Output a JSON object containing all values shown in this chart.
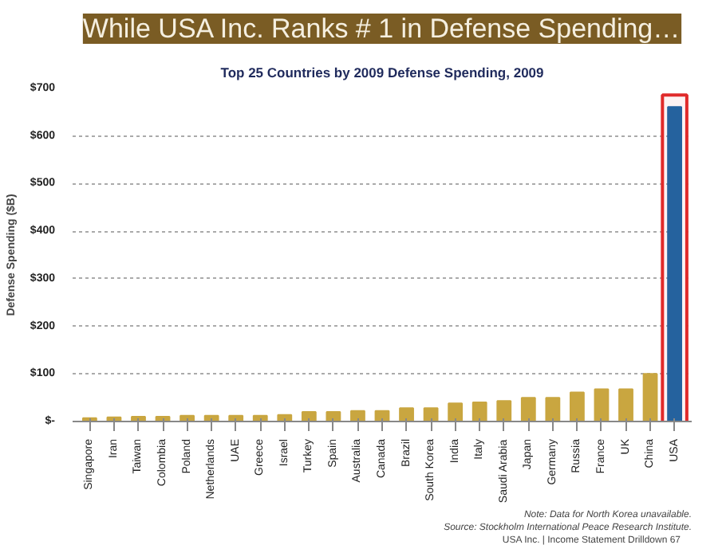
{
  "chart_data": {
    "type": "bar",
    "title": "While USA Inc. Ranks # 1 in Defense Spending…",
    "subtitle": "Top 25 Countries by 2009 Defense Spending, 2009",
    "ylabel": "Defense Spending ($B)",
    "categories": [
      "Singapore",
      "Iran",
      "Taiwan",
      "Colombia",
      "Poland",
      "Netherlands",
      "UAE",
      "Greece",
      "Israel",
      "Turkey",
      "Spain",
      "Australia",
      "Canada",
      "Brazil",
      "South Korea",
      "India",
      "Italy",
      "Saudi Arabia",
      "Japan",
      "Germany",
      "Russia",
      "France",
      "UK",
      "China",
      "USA"
    ],
    "values": [
      7,
      9,
      10,
      10,
      12,
      12,
      12,
      12,
      14,
      20,
      20,
      22,
      22,
      28,
      28,
      38,
      40,
      43,
      50,
      50,
      61,
      68,
      68,
      100,
      661
    ],
    "colors": [
      "#c9a640",
      "#c9a640",
      "#c9a640",
      "#c9a640",
      "#c9a640",
      "#c9a640",
      "#c9a640",
      "#c9a640",
      "#c9a640",
      "#c9a640",
      "#c9a640",
      "#c9a640",
      "#c9a640",
      "#c9a640",
      "#c9a640",
      "#c9a640",
      "#c9a640",
      "#c9a640",
      "#c9a640",
      "#c9a640",
      "#c9a640",
      "#c9a640",
      "#c9a640",
      "#c9a640",
      "#1a67a6"
    ],
    "ylim": [
      0,
      700
    ],
    "yticks": [
      {
        "value": 0,
        "label": "$-"
      },
      {
        "value": 100,
        "label": "$100"
      },
      {
        "value": 200,
        "label": "$200"
      },
      {
        "value": 300,
        "label": "$300"
      },
      {
        "value": 400,
        "label": "$400"
      },
      {
        "value": 500,
        "label": "$500"
      },
      {
        "value": 600,
        "label": "$600"
      },
      {
        "value": 700,
        "label": "$700"
      }
    ],
    "grid": "y",
    "bands": [
      {
        "axis": "x",
        "from": "USA",
        "to": "USA",
        "color": "#e02a2a"
      }
    ],
    "annotations": [
      "Note: Data for North Korea unavailable.",
      "Source: Stockholm International Peace Research Institute.",
      "USA Inc. | Income Statement Drilldown     67"
    ]
  }
}
